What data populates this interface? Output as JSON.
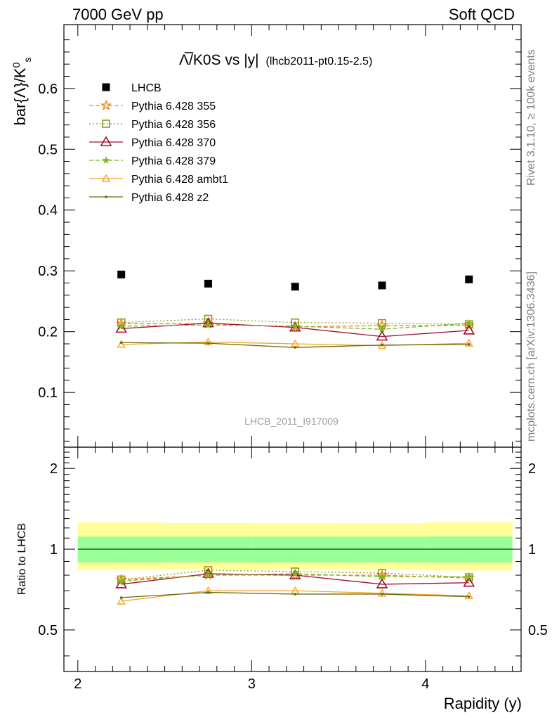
{
  "header": {
    "left": "7000 GeV pp",
    "right": "Soft QCD"
  },
  "title": {
    "main": "Λ̅/K0S vs |y|",
    "sub": "(lhcb2011-pt0.15-2.5)"
  },
  "side_labels": {
    "rivet": "Rivet 3.1.10, ≥ 100k events",
    "mcplots": "mcplots.cern.ch [arXiv:1306.3436]"
  },
  "watermark": "LHCB_2011_I917009",
  "colors": {
    "lhcb": "#000000",
    "p355": "#ff7f0e",
    "p356": "#8c9b1b",
    "p370": "#a01030",
    "p379": "#77bb22",
    "ambt1": "#f5a623",
    "z2": "#6b6b10",
    "band_outer": "#ffff99",
    "band_inner": "#99ff99"
  },
  "chart_data": [
    {
      "type": "scatter",
      "title": "Λ̅/K0S vs |y|",
      "xlabel": "",
      "ylabel": "bar{Λ}/K^0_s",
      "xlim": [
        1.92,
        4.55
      ],
      "ylim": [
        0.01,
        0.705
      ],
      "x": [
        2.25,
        2.75,
        3.25,
        3.75,
        4.25
      ],
      "yticks": [
        "0.1",
        "0.2",
        "0.3",
        "0.4",
        "0.5",
        "0.6"
      ],
      "legend_position": "top-left",
      "series": [
        {
          "name": "LHCB",
          "key": "lhcb",
          "marker": "square-filled",
          "line": "none",
          "values": [
            0.294,
            0.279,
            0.274,
            0.276,
            0.286
          ]
        },
        {
          "name": "Pythia 6.428 355",
          "key": "p355",
          "marker": "star",
          "line": "dashed",
          "values": [
            0.213,
            0.213,
            0.208,
            0.21,
            0.21
          ]
        },
        {
          "name": "Pythia 6.428 356",
          "key": "p356",
          "marker": "square-open",
          "line": "dotted",
          "values": [
            0.215,
            0.221,
            0.215,
            0.214,
            0.212
          ]
        },
        {
          "name": "Pythia 6.428 370",
          "key": "p370",
          "marker": "triangle-open",
          "line": "solid",
          "values": [
            0.205,
            0.214,
            0.207,
            0.192,
            0.202
          ]
        },
        {
          "name": "Pythia 6.428 379",
          "key": "p379",
          "marker": "star-small",
          "line": "dashed",
          "values": [
            0.209,
            0.211,
            0.209,
            0.204,
            0.214
          ]
        },
        {
          "name": "Pythia 6.428 ambt1",
          "key": "ambt1",
          "marker": "triangle-open-small",
          "line": "solid",
          "values": [
            0.179,
            0.183,
            0.18,
            0.177,
            0.181
          ]
        },
        {
          "name": "Pythia 6.428 z2",
          "key": "z2",
          "marker": "dot",
          "line": "solid",
          "values": [
            0.182,
            0.181,
            0.174,
            0.178,
            0.179
          ]
        }
      ]
    },
    {
      "type": "scatter",
      "title": "",
      "xlabel": "Rapidity (y)",
      "ylabel": "Ratio to LHCB",
      "xlim": [
        1.92,
        4.55
      ],
      "ylim": [
        0.35,
        2.4
      ],
      "xticks": [
        "2",
        "3",
        "4"
      ],
      "yticks": [
        "0.5",
        "1",
        "2"
      ],
      "x": [
        2.25,
        2.75,
        3.25,
        3.75,
        4.25
      ],
      "band_bins": [
        {
          "x0": 2.0,
          "x1": 2.5,
          "inner": [
            0.893,
            1.114
          ],
          "outer": [
            0.839,
            1.258
          ]
        },
        {
          "x0": 2.5,
          "x1": 3.0,
          "inner": [
            0.894,
            1.113
          ],
          "outer": [
            0.844,
            1.252
          ]
        },
        {
          "x0": 3.0,
          "x1": 3.5,
          "inner": [
            0.893,
            1.114
          ],
          "outer": [
            0.842,
            1.251
          ]
        },
        {
          "x0": 3.5,
          "x1": 4.0,
          "inner": [
            0.893,
            1.113
          ],
          "outer": [
            0.839,
            1.248
          ]
        },
        {
          "x0": 4.0,
          "x1": 4.5,
          "inner": [
            0.892,
            1.116
          ],
          "outer": [
            0.833,
            1.262
          ]
        }
      ],
      "series": [
        {
          "name": "Pythia 6.428 355",
          "key": "p355",
          "values": [
            0.77,
            0.8,
            0.8,
            0.8,
            0.78
          ]
        },
        {
          "name": "Pythia 6.428 356",
          "key": "p356",
          "values": [
            0.77,
            0.835,
            0.825,
            0.815,
            0.785
          ]
        },
        {
          "name": "Pythia 6.428 370",
          "key": "p370",
          "values": [
            0.74,
            0.81,
            0.8,
            0.74,
            0.75
          ]
        },
        {
          "name": "Pythia 6.428 379",
          "key": "p379",
          "values": [
            0.76,
            0.8,
            0.81,
            0.79,
            0.79
          ]
        },
        {
          "name": "Pythia 6.428 ambt1",
          "key": "ambt1",
          "values": [
            0.64,
            0.7,
            0.7,
            0.685,
            0.67
          ]
        },
        {
          "name": "Pythia 6.428 z2",
          "key": "z2",
          "values": [
            0.66,
            0.69,
            0.68,
            0.68,
            0.665
          ]
        }
      ]
    }
  ]
}
